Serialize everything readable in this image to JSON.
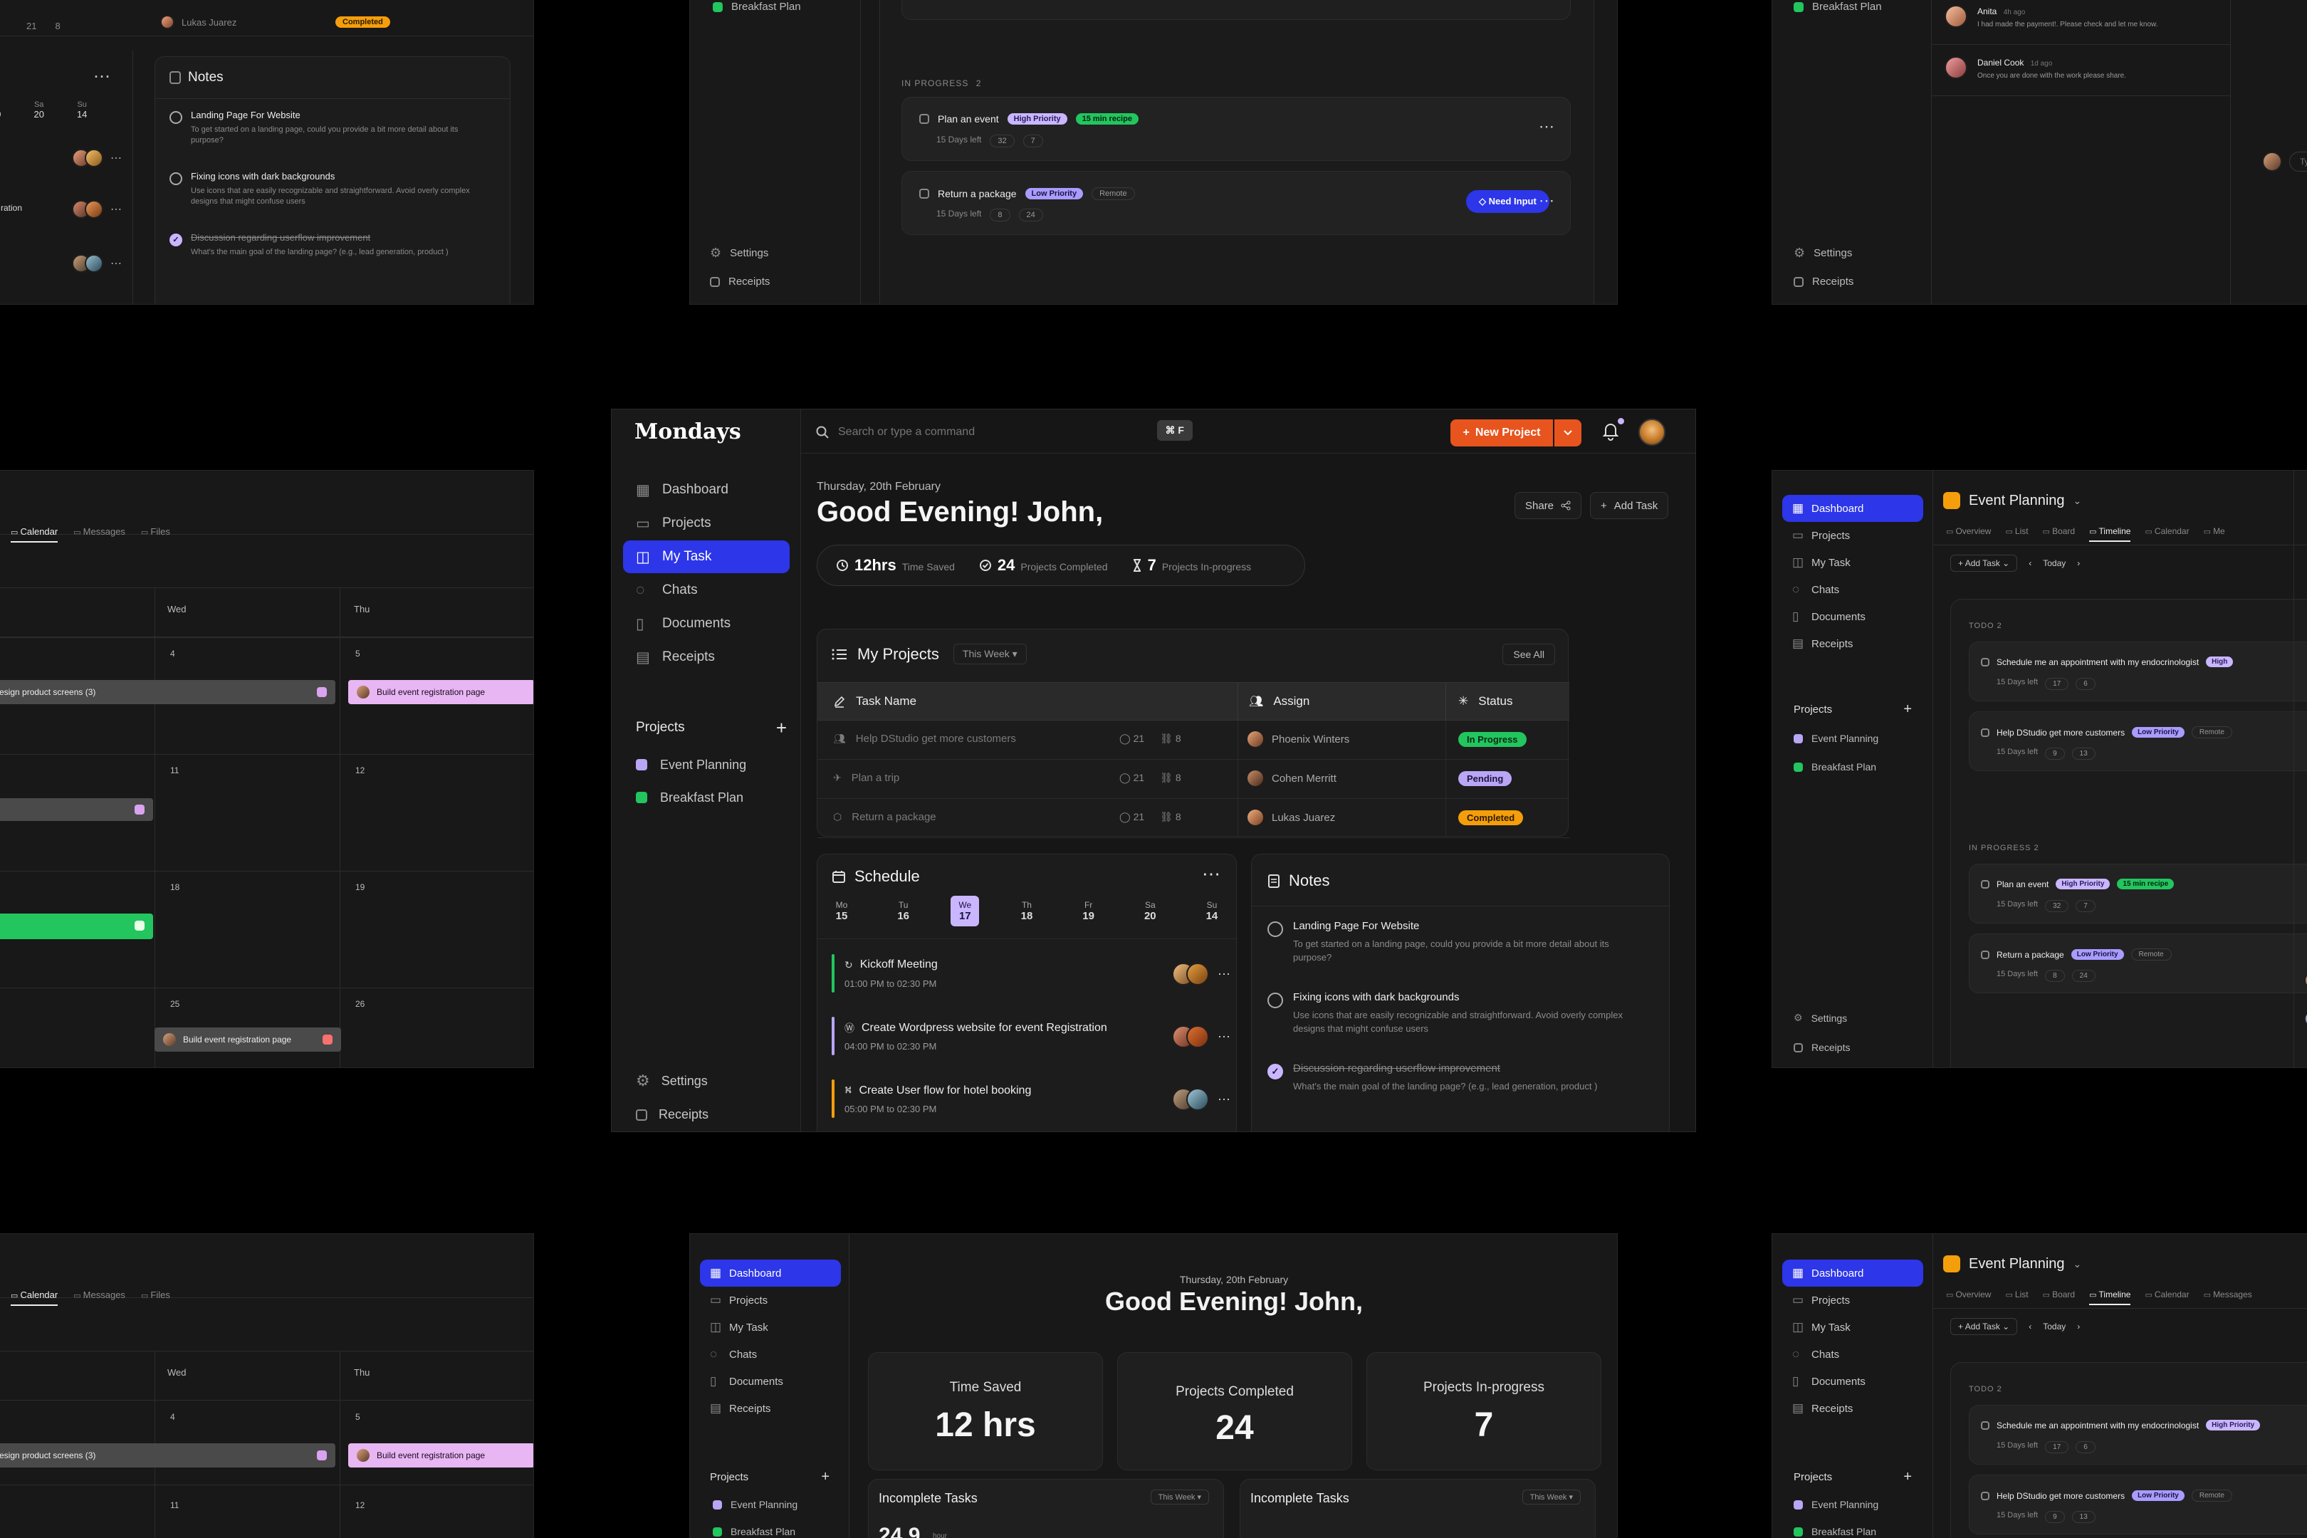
{
  "app": {
    "name": "Mondays"
  },
  "header": {
    "search_placeholder": "Search or type a command",
    "shortcut": "⌘ F",
    "new_project_label": "New Project"
  },
  "sidebar": {
    "items": [
      {
        "label": "Dashboard",
        "icon": "grid-icon"
      },
      {
        "label": "Projects",
        "icon": "folder-icon"
      },
      {
        "label": "My Task",
        "icon": "task-icon"
      },
      {
        "label": "Chats",
        "icon": "chat-icon"
      },
      {
        "label": "Documents",
        "icon": "document-icon"
      },
      {
        "label": "Receipts",
        "icon": "receipt-icon"
      }
    ],
    "projects_label": "Projects",
    "projects": [
      {
        "label": "Event Planning",
        "color": "#b9a6f5"
      },
      {
        "label": "Breakfast Plan",
        "color": "#22c55e"
      }
    ],
    "settings_label": "Settings",
    "receipts_label": "Receipts"
  },
  "main": {
    "date": "Thursday, 20th February",
    "greeting": "Good Evening! John,",
    "share_label": "Share",
    "add_task_label": "Add Task",
    "stats": [
      {
        "value": "12hrs",
        "label": "Time Saved"
      },
      {
        "value": "24",
        "label": "Projects Completed"
      },
      {
        "value": "7",
        "label": "Projects In-progress"
      }
    ]
  },
  "projects_table": {
    "title": "My Projects",
    "filter": "This Week",
    "see_all": "See All",
    "headers": [
      "Task Name",
      "Assign",
      "Status"
    ],
    "rows": [
      {
        "task": "Help DStudio get more customers",
        "comments": "21",
        "links": "8",
        "assign": "Phoenix Winters",
        "status": "In Progress",
        "status_color": "#22c55e",
        "status_text": "#0a2a12"
      },
      {
        "task": "Plan a trip",
        "comments": "21",
        "links": "8",
        "assign": "Cohen Merritt",
        "status": "Pending",
        "status_color": "#b9a6f5",
        "status_text": "#1c1240"
      },
      {
        "task": "Return a package",
        "comments": "21",
        "links": "8",
        "assign": "Lukas Juarez",
        "status": "Completed",
        "status_color": "#f59e0b",
        "status_text": "#2a1a00"
      }
    ]
  },
  "schedule": {
    "title": "Schedule",
    "days": [
      {
        "day": "Mo",
        "date": "15"
      },
      {
        "day": "Tu",
        "date": "16"
      },
      {
        "day": "We",
        "date": "17"
      },
      {
        "day": "Th",
        "date": "18"
      },
      {
        "day": "Fr",
        "date": "19"
      },
      {
        "day": "Sa",
        "date": "20"
      },
      {
        "day": "Su",
        "date": "14"
      }
    ],
    "events": [
      {
        "title": "Kickoff Meeting",
        "time": "01:00 PM to 02:30 PM",
        "color": "#22c55e"
      },
      {
        "title": "Create Wordpress website for event Registration",
        "time": "04:00 PM to 02:30 PM",
        "color": "#b9a6f5"
      },
      {
        "title": "Create User flow for hotel booking",
        "time": "05:00 PM to 02:30 PM",
        "color": "#f59e0b"
      }
    ]
  },
  "notes": {
    "title": "Notes",
    "items": [
      {
        "title": "Landing Page For Website",
        "body": "To get started on a landing page, could you provide a bit more detail about its purpose?",
        "done": false
      },
      {
        "title": "Fixing icons with dark backgrounds",
        "body": "Use icons that are easily recognizable and straightforward. Avoid overly complex designs that might confuse users",
        "done": false
      },
      {
        "title": "Discussion regarding userflow improvement",
        "body": "What's the main goal of the landing page? (e.g., lead generation, product )",
        "done": true
      }
    ]
  },
  "bg": {
    "tl_assign": "Lukas Juarez",
    "tl_status": "Completed",
    "tl_counts": [
      "21",
      "8"
    ],
    "tl_notes_title": "Notes",
    "tl_days": [
      {
        "d": "Fr",
        "n": "19"
      },
      {
        "d": "Sa",
        "n": "20"
      },
      {
        "d": "Su",
        "n": "14"
      }
    ],
    "tl_note_partial": "ration",
    "tc_in_progress": "IN PROGRESS",
    "tc_count": "2",
    "tc_days_left": "15 Days left",
    "tc_need_input": "Need Input",
    "tc_plan_event": "Plan an event",
    "tc_return_package": "Return a package",
    "tc_high": "High Priority",
    "tc_recipe": "15 min recipe",
    "tc_low": "Low Priority",
    "tc_remote": "Remote",
    "tc_counts1": [
      "32",
      "7"
    ],
    "tc_counts2": [
      "8",
      "24"
    ],
    "tr_chat": [
      {
        "name": "Anita",
        "ago": "4h ago",
        "msg": "I had made the payment!. Please check and let me know."
      },
      {
        "name": "Daniel Cook",
        "ago": "1d ago",
        "msg": "Once you are done with the work please share."
      }
    ],
    "tr_typing": "Typ",
    "ml_tabs": [
      "Calendar",
      "Messages",
      "Files"
    ],
    "ml_days": [
      "Wed",
      "Thu"
    ],
    "ml_dates": [
      "4",
      "5",
      "11",
      "12",
      "18",
      "19",
      "25",
      "26"
    ],
    "ml_bar1": "esign product screens (3)",
    "ml_bar2": "Build event registration page",
    "ml_bar3": "Build event registration page",
    "mr_title": "Event Planning",
    "mr_tabs": [
      "Overview",
      "List",
      "Board",
      "Timeline",
      "Calendar",
      "Me"
    ],
    "mr_add_task": "Add Task",
    "mr_today": "Today",
    "mr_todo": "TODO",
    "mr_task1": "Schedule me an appointment with my endocrinologist",
    "mr_task2": "Help DStudio get more customers",
    "mr_task3": "Plan an event",
    "mr_task4": "Return a package",
    "mr_high": "High",
    "mr_counts1": [
      "17",
      "6"
    ],
    "mr_counts2": [
      "9",
      "13"
    ],
    "mr_counts3": [
      "32",
      "7"
    ],
    "mr_counts4": [
      "8",
      "24"
    ],
    "mr_right_letters": [
      "Sc",
      "en",
      "Assi",
      "Due",
      "Proj",
      "Field",
      "Desc",
      "Com"
    ],
    "bc_date": "Thursday, 20th February",
    "bc_greeting": "Good Evening! John,",
    "bc_stats": [
      {
        "label": "Time Saved",
        "value": "12 hrs"
      },
      {
        "label": "Projects Completed",
        "value": "24"
      },
      {
        "label": "Projects In-progress",
        "value": "7"
      }
    ],
    "bc_incomplete": "Incomplete Tasks",
    "bc_this_week": "This Week",
    "bc_partial_value": "24.9",
    "bc_partial_unit": "hour",
    "br_tabs": [
      "Overview",
      "List",
      "Board",
      "Timeline",
      "Calendar",
      "Messages"
    ],
    "br_high": "High Priority"
  }
}
